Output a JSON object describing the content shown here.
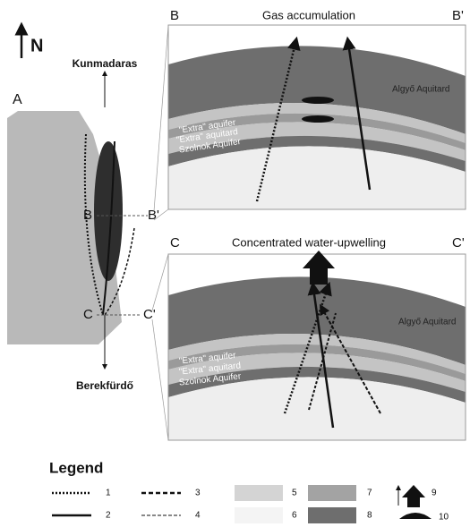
{
  "north": "N",
  "map": {
    "label": "A",
    "north_end": "Kunmadaras",
    "south_end": "Berekfürdő",
    "section_b": [
      "B",
      "B'"
    ],
    "section_c": [
      "C",
      "C'"
    ]
  },
  "sections": [
    {
      "start": "B",
      "end": "B'",
      "title": "Gas accumulation",
      "layers": [
        "\"Extra\" aquifer",
        "\"Extra\" aquitard",
        "Szolnok Aquifer",
        "Algyő Aquitard"
      ]
    },
    {
      "start": "C",
      "end": "C'",
      "title": "Concentrated water-upwelling",
      "layers": [
        "\"Extra\" aquifer",
        "\"Extra\" aquitard",
        "Szolnok Aquifer",
        "Algyő Aquitard"
      ]
    }
  ],
  "legend": {
    "title": "Legend",
    "items": [
      "1",
      "2",
      "3",
      "4",
      "5",
      "6",
      "7",
      "8",
      "9",
      "10"
    ]
  }
}
